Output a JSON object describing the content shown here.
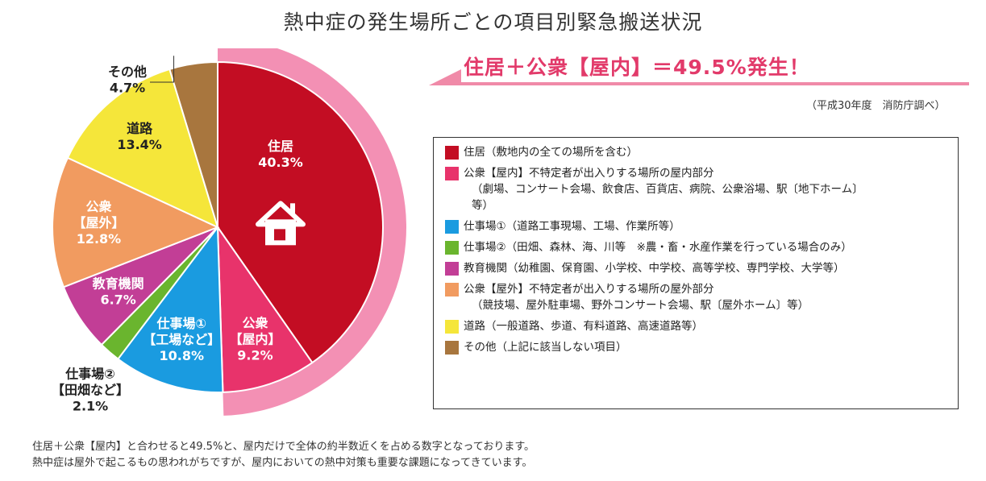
{
  "title": "熱中症の発生場所ごとの項目別緊急搬送状況",
  "banner": "住居＋公衆【屋内】＝49.5%発生！",
  "source": "（平成30年度　消防庁調べ）",
  "colors": {
    "banner_pink": "#f08aa8",
    "banner_text": "#e23a6a",
    "outer_ring": "#f390b4"
  },
  "chart_data": {
    "type": "pie",
    "start_angle": "12 o'clock, clockwise",
    "slices": [
      {
        "label_lines": [
          "住居"
        ],
        "value": 40.3,
        "value_text": "40.3%",
        "color": "#c30d23",
        "label_color": "#ffffff",
        "icon": "house-icon"
      },
      {
        "label_lines": [
          "公衆",
          "【屋内】"
        ],
        "value": 9.2,
        "value_text": "9.2%",
        "color": "#e8336b",
        "label_color": "#ffffff"
      },
      {
        "label_lines": [
          "仕事場①",
          "【工場など】"
        ],
        "value": 10.8,
        "value_text": "10.8%",
        "color": "#1a9be0",
        "label_color": "#ffffff"
      },
      {
        "label_lines": [
          "仕事場②",
          "【田畑など】"
        ],
        "value": 2.1,
        "value_text": "2.1%",
        "color": "#6ab52e",
        "label_color": "#222222",
        "label_outside": true
      },
      {
        "label_lines": [
          "教育機関"
        ],
        "value": 6.7,
        "value_text": "6.7%",
        "color": "#c23e96",
        "label_color": "#ffffff"
      },
      {
        "label_lines": [
          "公衆",
          "【屋外】"
        ],
        "value": 12.8,
        "value_text": "12.8%",
        "color": "#f19b60",
        "label_color": "#ffffff"
      },
      {
        "label_lines": [
          "道路"
        ],
        "value": 13.4,
        "value_text": "13.4%",
        "color": "#f5e63a",
        "label_color": "#222222"
      },
      {
        "label_lines": [
          "その他"
        ],
        "value": 4.7,
        "value_text": "4.7%",
        "color": "#a8763e",
        "label_color": "#222222",
        "label_outside": true
      }
    ],
    "highlight_ring": {
      "covers": [
        "住居",
        "公衆【屋内】"
      ],
      "value": 49.5
    }
  },
  "legend": [
    {
      "color": "#c30d23",
      "lines": [
        "住居（敷地内の全ての場所を含む）"
      ]
    },
    {
      "color": "#e8336b",
      "lines": [
        "公衆【屋内】不特定者が出入りする場所の屋内部分",
        "（劇場、コンサート会場、飲食店、百貨店、病院、公衆浴場、駅〔地下ホーム〕",
        "等）"
      ]
    },
    {
      "color": "#1a9be0",
      "lines": [
        "仕事場①（道路工事現場、工場、作業所等）"
      ]
    },
    {
      "color": "#6ab52e",
      "lines": [
        "仕事場②（田畑、森林、海、川等　※農・畜・水産作業を行っている場合のみ）"
      ]
    },
    {
      "color": "#c23e96",
      "lines": [
        "教育機関（幼稚園、保育園、小学校、中学校、高等学校、専門学校、大学等）"
      ]
    },
    {
      "color": "#f19b60",
      "lines": [
        "公衆【屋外】不特定者が出入りする場所の屋外部分",
        "（競技場、屋外駐車場、野外コンサート会場、駅〔屋外ホーム〕等）"
      ]
    },
    {
      "color": "#f5e63a",
      "lines": [
        "道路（一般道路、歩道、有料道路、高速道路等）"
      ]
    },
    {
      "color": "#a8763e",
      "lines": [
        "その他（上記に該当しない項目）"
      ]
    }
  ],
  "footnote": [
    "住居＋公衆【屋内】と合わせると49.5%と、屋内だけで全体の約半数近くを占める数字となっております。",
    "熱中症は屋外で起こるもの思われがちですが、屋内においての熱中対策も重要な課題になってきています。"
  ]
}
